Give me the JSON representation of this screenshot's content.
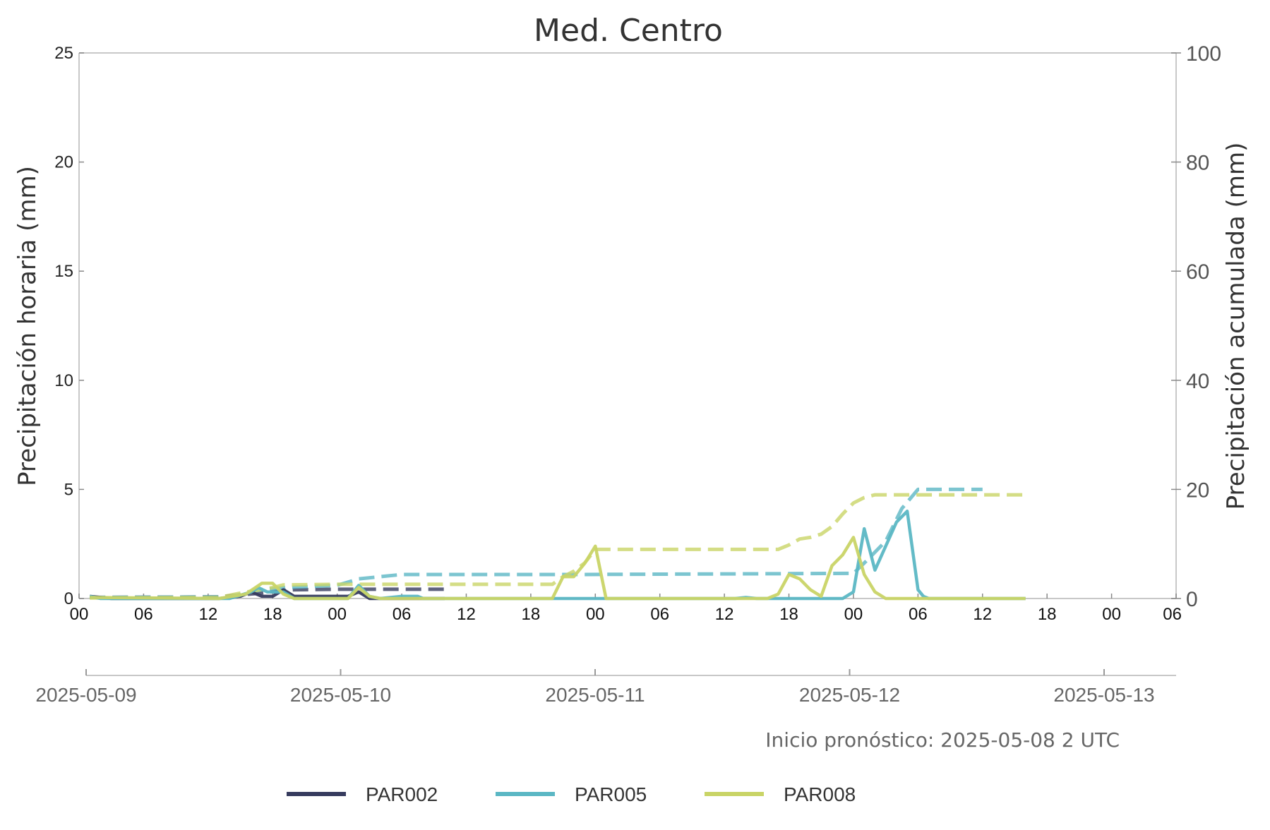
{
  "chart_data": {
    "type": "line",
    "title": "Med. Centro",
    "ylabel_left": "Precipitación horaria (mm)",
    "ylabel_right": "Precipitación acumulada (mm)",
    "ylim_left": [
      0,
      25
    ],
    "ylim_right": [
      0,
      100
    ],
    "yticks_left": [
      0,
      5,
      10,
      15,
      20,
      25
    ],
    "yticks_right": [
      0,
      20,
      40,
      60,
      80,
      100
    ],
    "x_start": "2025-05-09 00:00",
    "x_end": "2025-05-13 06:00",
    "hour_tick_labels": [
      "00",
      "06",
      "12",
      "18",
      "00",
      "06",
      "12",
      "18",
      "00",
      "06",
      "12",
      "18",
      "00",
      "06",
      "12",
      "18",
      "00",
      "06"
    ],
    "date_tick_labels": [
      "2025-05-09",
      "2025-05-10",
      "2025-05-11",
      "2025-05-12",
      "2025-05-13"
    ],
    "note": "Inicio pronóstico: 2025-05-08 2 UTC",
    "grid": false,
    "legend_position": "bottom",
    "colors": {
      "PAR002": "#363b5e",
      "PAR005": "#5bb7c4",
      "PAR008": "#c9d466",
      "axis": "#c8c8c8"
    },
    "series": [
      {
        "name": "PAR002",
        "hourly": [
          [
            "2025-05-09 01:00",
            0.1
          ],
          [
            "2025-05-09 03:00",
            0
          ],
          [
            "2025-05-09 13:00",
            0
          ],
          [
            "2025-05-09 15:00",
            0.1
          ],
          [
            "2025-05-09 16:00",
            0.3
          ],
          [
            "2025-05-09 17:00",
            0.1
          ],
          [
            "2025-05-09 18:00",
            0.1
          ],
          [
            "2025-05-09 19:00",
            0.4
          ],
          [
            "2025-05-09 20:00",
            0.1
          ],
          [
            "2025-05-09 22:00",
            0.1
          ],
          [
            "2025-05-10 01:00",
            0.1
          ],
          [
            "2025-05-10 02:00",
            0.3
          ],
          [
            "2025-05-10 03:00",
            0
          ],
          [
            "2025-05-10 10:00",
            0
          ]
        ],
        "accumulated": [
          [
            "2025-05-09 01:00",
            0.2
          ],
          [
            "2025-05-09 13:00",
            0.3
          ],
          [
            "2025-05-09 17:00",
            1.0
          ],
          [
            "2025-05-09 19:00",
            1.5
          ],
          [
            "2025-05-09 20:00",
            1.6
          ],
          [
            "2025-05-10 00:00",
            1.7
          ],
          [
            "2025-05-10 10:00",
            1.7
          ]
        ]
      },
      {
        "name": "PAR005",
        "hourly": [
          [
            "2025-05-09 01:00",
            0.1
          ],
          [
            "2025-05-09 02:00",
            0
          ],
          [
            "2025-05-09 14:00",
            0
          ],
          [
            "2025-05-09 16:00",
            0.3
          ],
          [
            "2025-05-09 16:40",
            0.5
          ],
          [
            "2025-05-09 17:30",
            0.3
          ],
          [
            "2025-05-09 19:00",
            0.3
          ],
          [
            "2025-05-09 20:00",
            0
          ],
          [
            "2025-05-10 01:00",
            0
          ],
          [
            "2025-05-10 02:00",
            0.6
          ],
          [
            "2025-05-10 03:00",
            0.1
          ],
          [
            "2025-05-10 04:00",
            0
          ],
          [
            "2025-05-10 06:00",
            0.1
          ],
          [
            "2025-05-10 07:30",
            0.1
          ],
          [
            "2025-05-10 08:00",
            0
          ],
          [
            "2025-05-11 13:00",
            0
          ],
          [
            "2025-05-11 14:00",
            0.05
          ],
          [
            "2025-05-11 15:00",
            0
          ],
          [
            "2025-05-11 23:00",
            0
          ],
          [
            "2025-05-12 00:00",
            0.3
          ],
          [
            "2025-05-12 01:00",
            3.2
          ],
          [
            "2025-05-12 02:00",
            1.3
          ],
          [
            "2025-05-12 04:00",
            3.5
          ],
          [
            "2025-05-12 05:00",
            4.0
          ],
          [
            "2025-05-12 06:00",
            0.4
          ],
          [
            "2025-05-12 06:30",
            0.1
          ],
          [
            "2025-05-12 07:00",
            0
          ],
          [
            "2025-05-12 16:00",
            0
          ]
        ],
        "accumulated": [
          [
            "2025-05-09 01:00",
            0.2
          ],
          [
            "2025-05-09 14:00",
            0.3
          ],
          [
            "2025-05-09 16:00",
            1.2
          ],
          [
            "2025-05-09 17:00",
            1.6
          ],
          [
            "2025-05-09 19:00",
            2.0
          ],
          [
            "2025-05-10 00:00",
            2.4
          ],
          [
            "2025-05-10 02:00",
            3.6
          ],
          [
            "2025-05-10 06:00",
            4.4
          ],
          [
            "2025-05-10 22:00",
            4.4
          ],
          [
            "2025-05-12 00:00",
            4.6
          ],
          [
            "2025-05-12 01:00",
            6.5
          ],
          [
            "2025-05-12 03:00",
            10.5
          ],
          [
            "2025-05-12 04:30",
            16.5
          ],
          [
            "2025-05-12 06:00",
            20.0
          ],
          [
            "2025-05-12 12:00",
            20.0
          ]
        ]
      },
      {
        "name": "PAR008",
        "hourly": [
          [
            "2025-05-09 01:00",
            0.05
          ],
          [
            "2025-05-09 13:00",
            0
          ],
          [
            "2025-05-09 15:30",
            0.2
          ],
          [
            "2025-05-09 17:00",
            0.7
          ],
          [
            "2025-05-09 18:00",
            0.7
          ],
          [
            "2025-05-09 19:00",
            0.2
          ],
          [
            "2025-05-09 20:00",
            0
          ],
          [
            "2025-05-10 01:00",
            0
          ],
          [
            "2025-05-10 02:00",
            0.5
          ],
          [
            "2025-05-10 03:00",
            0.1
          ],
          [
            "2025-05-10 04:00",
            0
          ],
          [
            "2025-05-10 20:00",
            0
          ],
          [
            "2025-05-10 21:00",
            1.0
          ],
          [
            "2025-05-10 22:00",
            1.0
          ],
          [
            "2025-05-10 23:00",
            1.6
          ],
          [
            "2025-05-11 00:00",
            2.4
          ],
          [
            "2025-05-11 01:00",
            0
          ],
          [
            "2025-05-11 16:00",
            0
          ],
          [
            "2025-05-11 17:00",
            0.2
          ],
          [
            "2025-05-11 18:00",
            1.1
          ],
          [
            "2025-05-11 19:00",
            0.9
          ],
          [
            "2025-05-11 20:00",
            0.4
          ],
          [
            "2025-05-11 21:00",
            0.1
          ],
          [
            "2025-05-11 22:00",
            1.5
          ],
          [
            "2025-05-11 23:00",
            2.0
          ],
          [
            "2025-05-12 00:00",
            2.8
          ],
          [
            "2025-05-12 01:00",
            1.1
          ],
          [
            "2025-05-12 02:00",
            0.3
          ],
          [
            "2025-05-12 03:00",
            0
          ],
          [
            "2025-05-12 16:00",
            0
          ]
        ],
        "accumulated": [
          [
            "2025-05-09 01:00",
            0.1
          ],
          [
            "2025-05-09 13:00",
            0.2
          ],
          [
            "2025-05-09 15:00",
            1.0
          ],
          [
            "2025-05-09 18:00",
            2.0
          ],
          [
            "2025-05-09 19:00",
            2.5
          ],
          [
            "2025-05-10 00:00",
            2.6
          ],
          [
            "2025-05-10 02:00",
            2.6
          ],
          [
            "2025-05-10 20:00",
            2.6
          ],
          [
            "2025-05-10 21:00",
            4.0
          ],
          [
            "2025-05-10 22:00",
            5.0
          ],
          [
            "2025-05-10 23:00",
            6.5
          ],
          [
            "2025-05-11 00:00",
            9.0
          ],
          [
            "2025-05-11 01:00",
            9.0
          ],
          [
            "2025-05-11 17:00",
            9.0
          ],
          [
            "2025-05-11 18:00",
            9.8
          ],
          [
            "2025-05-11 19:00",
            10.9
          ],
          [
            "2025-05-11 20:00",
            11.2
          ],
          [
            "2025-05-11 21:00",
            11.8
          ],
          [
            "2025-05-11 22:00",
            13.2
          ],
          [
            "2025-05-11 23:00",
            15.5
          ],
          [
            "2025-05-12 00:00",
            17.5
          ],
          [
            "2025-05-12 01:00",
            18.5
          ],
          [
            "2025-05-12 02:00",
            19.0
          ],
          [
            "2025-05-12 16:00",
            19.0
          ]
        ]
      }
    ]
  }
}
